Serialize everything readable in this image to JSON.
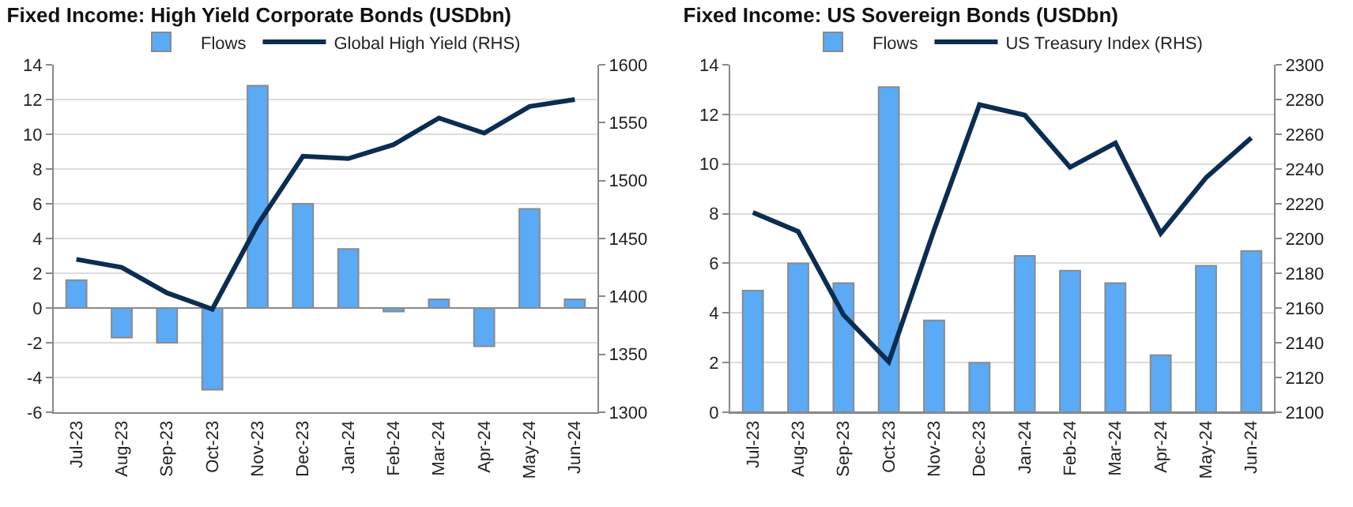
{
  "chart_data": [
    {
      "type": "bar",
      "title": "Fixed Income: High Yield Corporate Bonds (USDbn)",
      "categories": [
        "Jul-23",
        "Aug-23",
        "Sep-23",
        "Oct-23",
        "Nov-23",
        "Dec-23",
        "Jan-24",
        "Feb-24",
        "Mar-24",
        "Apr-24",
        "May-24",
        "Jun-24"
      ],
      "series": [
        {
          "name": "Flows",
          "color": "#5aaaf5",
          "values": [
            1.6,
            -1.7,
            -2.0,
            -4.7,
            12.8,
            6.0,
            3.4,
            -0.2,
            0.5,
            -2.2,
            5.7,
            0.5
          ]
        },
        {
          "name": "Global High Yield (RHS)",
          "type": "line",
          "axis": "y2",
          "color": "#0b2d52",
          "values": [
            1432,
            1425,
            1403,
            1389,
            1462,
            1521,
            1519,
            1531,
            1554,
            1541,
            1564,
            1570
          ]
        }
      ],
      "ylim": [
        -6,
        14
      ],
      "yticks": [
        -6,
        -4,
        -2,
        0,
        2,
        4,
        6,
        8,
        10,
        12,
        14
      ],
      "y2lim": [
        1300,
        1600
      ],
      "y2ticks": [
        1300,
        1350,
        1400,
        1450,
        1500,
        1550,
        1600
      ],
      "grid": "y",
      "legend": "top",
      "marker": "none",
      "line_style": "solid"
    },
    {
      "type": "bar",
      "title": "Fixed Income: US Sovereign Bonds (USDbn)",
      "categories": [
        "Jul-23",
        "Aug-23",
        "Sep-23",
        "Oct-23",
        "Nov-23",
        "Dec-23",
        "Jan-24",
        "Feb-24",
        "Mar-24",
        "Apr-24",
        "May-24",
        "Jun-24"
      ],
      "series": [
        {
          "name": "Flows",
          "color": "#5aaaf5",
          "values": [
            4.9,
            6.0,
            5.2,
            13.1,
            3.7,
            2.0,
            6.3,
            5.7,
            5.2,
            2.3,
            5.9,
            6.5
          ]
        },
        {
          "name": "US Treasury Index (RHS)",
          "type": "line",
          "axis": "y2",
          "color": "#0b2d52",
          "values": [
            2215,
            2204,
            2156,
            2129,
            2205,
            2277,
            2271,
            2241,
            2255,
            2203,
            2235,
            2258
          ]
        }
      ],
      "ylim": [
        0,
        14
      ],
      "yticks": [
        0,
        2,
        4,
        6,
        8,
        10,
        12,
        14
      ],
      "y2lim": [
        2100,
        2300
      ],
      "y2ticks": [
        2100,
        2120,
        2140,
        2160,
        2180,
        2200,
        2220,
        2240,
        2260,
        2280,
        2300
      ],
      "grid": "y",
      "legend": "top",
      "marker": "none",
      "line_style": "solid"
    }
  ]
}
